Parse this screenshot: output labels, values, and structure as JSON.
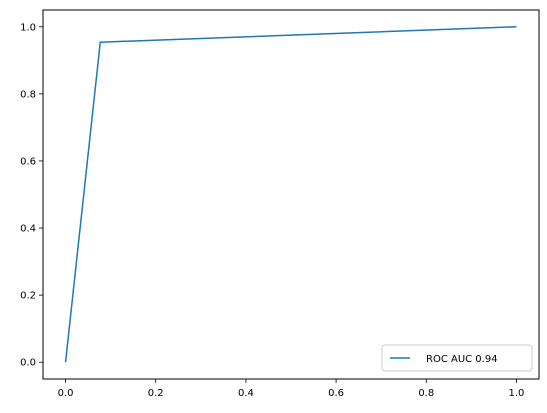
{
  "chart_data": {
    "type": "line",
    "xlim": [
      -0.05,
      1.05
    ],
    "ylim": [
      -0.05,
      1.05
    ],
    "grid": false,
    "legend_position": "lower-right",
    "x_ticks": [
      "0.0",
      "0.2",
      "0.4",
      "0.6",
      "0.8",
      "1.0"
    ],
    "y_ticks": [
      "0.0",
      "0.2",
      "0.4",
      "0.6",
      "0.8",
      "1.0"
    ],
    "series": [
      {
        "name": "ROC AUC 0.94",
        "color": "#1f77b4",
        "x": [
          0.0,
          0.077,
          1.0
        ],
        "y": [
          0.0,
          0.954,
          1.0
        ]
      }
    ]
  }
}
